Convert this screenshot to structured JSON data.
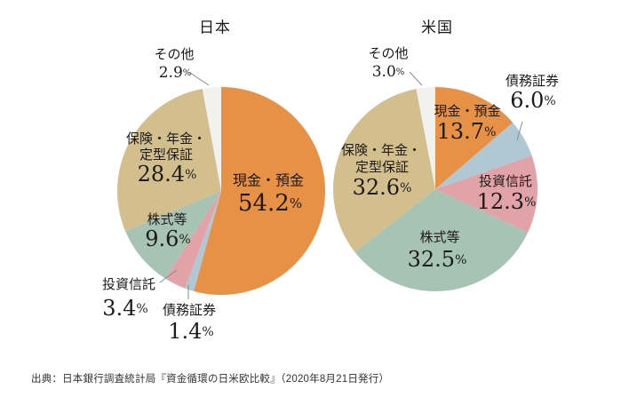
{
  "page": {
    "source_note": "出典：日本銀行調査統計局『資金循環の日米欧比較』（2020年8月21日発行）"
  },
  "colors": {
    "cash": "#E79147",
    "debt_securities": "#AFC8D3",
    "investment_trusts": "#E1A3A8",
    "equities": "#A7C3B4",
    "insurance": "#D3BF8E",
    "other": "#F1F1EF",
    "label_text": "#1b1b1b",
    "leader_line": "#8a8a8a"
  },
  "chart_data": [
    {
      "type": "pie",
      "id": "japan",
      "title": "日本",
      "unit": "%",
      "start_angle_deg": 0,
      "direction": "clockwise",
      "slices": [
        {
          "key": "cash",
          "label": "現金・預金",
          "value": 54.2
        },
        {
          "key": "debt_securities",
          "label": "債務証券",
          "value": 1.4
        },
        {
          "key": "investment_trusts",
          "label": "投資信託",
          "value": 3.4
        },
        {
          "key": "equities",
          "label": "株式等",
          "value": 9.6
        },
        {
          "key": "insurance",
          "label": "保険・年金・定型保証",
          "value": 28.4
        },
        {
          "key": "other",
          "label": "その他",
          "value": 2.9
        }
      ]
    },
    {
      "type": "pie",
      "id": "us",
      "title": "米国",
      "unit": "%",
      "start_angle_deg": 0,
      "direction": "clockwise",
      "slices": [
        {
          "key": "cash",
          "label": "現金・預金",
          "value": 13.7
        },
        {
          "key": "debt_securities",
          "label": "債務証券",
          "value": 6.0
        },
        {
          "key": "investment_trusts",
          "label": "投資信託",
          "value": 12.3
        },
        {
          "key": "equities",
          "label": "株式等",
          "value": 32.5
        },
        {
          "key": "insurance",
          "label": "保険・年金・定型保証",
          "value": 32.6
        },
        {
          "key": "other",
          "label": "その他",
          "value": 3.0
        }
      ]
    }
  ]
}
